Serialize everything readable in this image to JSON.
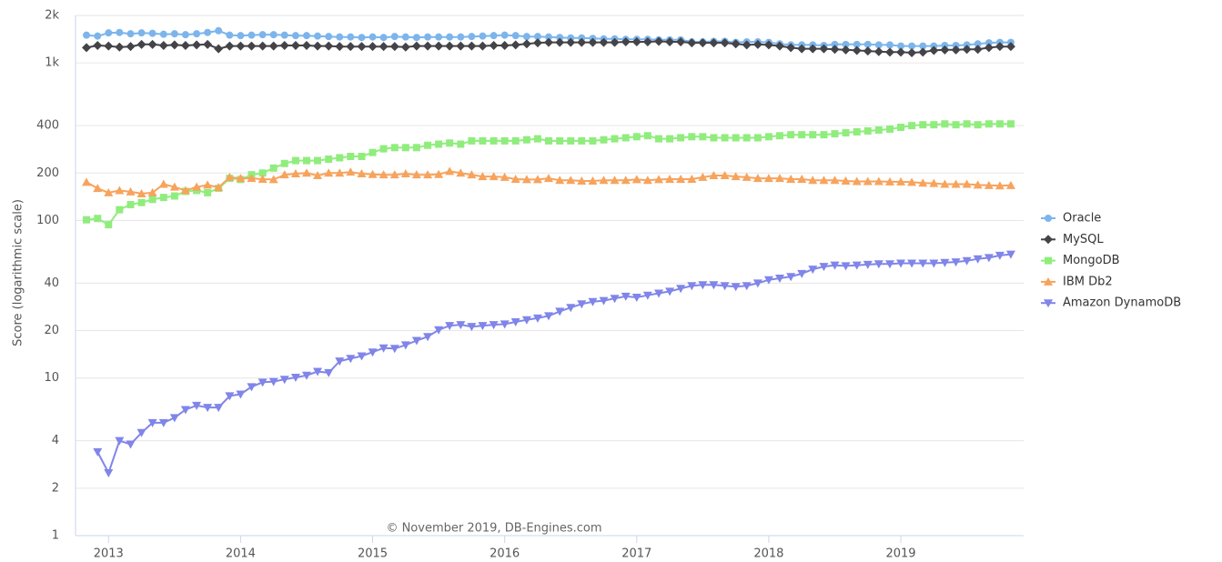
{
  "chart_data": {
    "type": "line",
    "log_scale": true,
    "grid": true,
    "legend": "right",
    "y_label": "Score (logarithmic scale)",
    "annotation": "© November 2019, DB-Engines.com",
    "xlim": [
      2012.75,
      2019.93
    ],
    "xticks": [
      2013,
      2014,
      2015,
      2016,
      2017,
      2018,
      2019
    ],
    "ylim": [
      1,
      2000
    ],
    "yticks": [
      {
        "value": 2000,
        "label": "2k"
      },
      {
        "value": 1000,
        "label": "1k"
      },
      400,
      200,
      100,
      40,
      20,
      10,
      4,
      2,
      1
    ],
    "x": [
      2012.833,
      2012.917,
      2013,
      2013.083,
      2013.167,
      2013.25,
      2013.333,
      2013.417,
      2013.5,
      2013.583,
      2013.667,
      2013.75,
      2013.833,
      2013.917,
      2014,
      2014.083,
      2014.167,
      2014.25,
      2014.333,
      2014.417,
      2014.5,
      2014.583,
      2014.667,
      2014.75,
      2014.833,
      2014.917,
      2015,
      2015.083,
      2015.167,
      2015.25,
      2015.333,
      2015.417,
      2015.5,
      2015.583,
      2015.667,
      2015.75,
      2015.833,
      2015.917,
      2016,
      2016.083,
      2016.167,
      2016.25,
      2016.333,
      2016.417,
      2016.5,
      2016.583,
      2016.667,
      2016.75,
      2016.833,
      2016.917,
      2017,
      2017.083,
      2017.167,
      2017.25,
      2017.333,
      2017.417,
      2017.5,
      2017.583,
      2017.667,
      2017.75,
      2017.833,
      2017.917,
      2018,
      2018.083,
      2018.167,
      2018.25,
      2018.333,
      2018.417,
      2018.5,
      2018.583,
      2018.667,
      2018.75,
      2018.833,
      2018.917,
      2019,
      2019.083,
      2019.167,
      2019.25,
      2019.333,
      2019.417,
      2019.5,
      2019.583,
      2019.667,
      2019.75,
      2019.833
    ],
    "series": [
      {
        "name": "Oracle",
        "color": "#7cb5ec",
        "marker": "circle",
        "values": [
          1500,
          1480,
          1550,
          1560,
          1530,
          1550,
          1540,
          1520,
          1530,
          1510,
          1530,
          1560,
          1600,
          1500,
          1490,
          1500,
          1510,
          1510,
          1500,
          1490,
          1490,
          1480,
          1470,
          1460,
          1460,
          1450,
          1460,
          1450,
          1470,
          1460,
          1450,
          1460,
          1460,
          1460,
          1460,
          1470,
          1480,
          1490,
          1500,
          1490,
          1470,
          1470,
          1460,
          1450,
          1440,
          1440,
          1430,
          1420,
          1420,
          1410,
          1410,
          1410,
          1400,
          1400,
          1400,
          1360,
          1360,
          1370,
          1370,
          1350,
          1360,
          1360,
          1350,
          1320,
          1300,
          1300,
          1300,
          1290,
          1310,
          1310,
          1310,
          1310,
          1300,
          1300,
          1280,
          1280,
          1280,
          1280,
          1290,
          1290,
          1300,
          1320,
          1340,
          1350,
          1350
        ]
      },
      {
        "name": "MySQL",
        "color": "#434348",
        "marker": "diamond",
        "values": [
          1250,
          1290,
          1280,
          1260,
          1270,
          1310,
          1310,
          1290,
          1300,
          1290,
          1300,
          1310,
          1230,
          1280,
          1280,
          1280,
          1280,
          1280,
          1290,
          1290,
          1290,
          1280,
          1280,
          1270,
          1270,
          1270,
          1270,
          1270,
          1270,
          1260,
          1280,
          1280,
          1280,
          1280,
          1280,
          1280,
          1280,
          1290,
          1290,
          1300,
          1320,
          1340,
          1350,
          1350,
          1350,
          1350,
          1350,
          1350,
          1350,
          1360,
          1360,
          1360,
          1370,
          1360,
          1360,
          1340,
          1340,
          1340,
          1340,
          1320,
          1300,
          1310,
          1300,
          1280,
          1250,
          1230,
          1230,
          1230,
          1220,
          1210,
          1200,
          1190,
          1180,
          1170,
          1170,
          1160,
          1170,
          1200,
          1210,
          1210,
          1220,
          1220,
          1250,
          1270,
          1270
        ]
      },
      {
        "name": "MongoDB",
        "color": "#90ed7d",
        "marker": "square",
        "values": [
          101,
          103,
          94,
          117,
          126,
          130,
          136,
          140,
          143,
          153,
          155,
          150,
          160,
          185,
          182,
          195,
          200,
          215,
          230,
          240,
          240,
          240,
          245,
          250,
          255,
          255,
          270,
          285,
          290,
          290,
          290,
          300,
          305,
          310,
          305,
          320,
          320,
          320,
          320,
          320,
          325,
          330,
          320,
          320,
          320,
          320,
          320,
          325,
          330,
          335,
          340,
          345,
          330,
          330,
          335,
          340,
          340,
          335,
          335,
          335,
          335,
          335,
          340,
          345,
          350,
          350,
          350,
          350,
          355,
          360,
          365,
          370,
          375,
          380,
          390,
          400,
          405,
          405,
          410,
          405,
          410,
          405,
          410,
          410,
          410
        ]
      },
      {
        "name": "IBM Db2",
        "color": "#f7a35c",
        "marker": "triangle",
        "values": [
          175,
          160,
          150,
          155,
          152,
          148,
          150,
          170,
          163,
          155,
          163,
          168,
          162,
          188,
          185,
          185,
          183,
          182,
          195,
          198,
          200,
          193,
          200,
          200,
          203,
          198,
          196,
          195,
          195,
          198,
          195,
          195,
          196,
          205,
          200,
          195,
          190,
          190,
          188,
          183,
          182,
          182,
          185,
          180,
          180,
          178,
          178,
          180,
          180,
          180,
          182,
          180,
          182,
          183,
          183,
          183,
          188,
          193,
          193,
          190,
          188,
          185,
          185,
          185,
          183,
          183,
          180,
          180,
          180,
          178,
          177,
          177,
          177,
          176,
          176,
          175,
          173,
          172,
          170,
          170,
          170,
          168,
          167,
          166,
          167
        ]
      },
      {
        "name": "Amazon DynamoDB",
        "color": "#8085e9",
        "marker": "triangle-down",
        "values": [
          null,
          3.4,
          2.5,
          4.0,
          3.8,
          4.5,
          5.2,
          5.2,
          5.6,
          6.3,
          6.7,
          6.5,
          6.5,
          7.7,
          7.9,
          8.8,
          9.4,
          9.5,
          9.8,
          10.1,
          10.4,
          11.0,
          10.8,
          12.8,
          13.3,
          13.8,
          14.6,
          15.5,
          15.4,
          16.2,
          17.3,
          18.3,
          20.2,
          21.5,
          21.8,
          21.2,
          21.5,
          21.8,
          22.0,
          22.7,
          23.4,
          24.0,
          24.8,
          26.5,
          28.0,
          29.5,
          30.5,
          31.0,
          32.0,
          33.0,
          32.5,
          33.5,
          34.5,
          35.5,
          37.0,
          38.5,
          39.0,
          39.0,
          38.5,
          38.0,
          38.5,
          40.0,
          42.0,
          43.0,
          44.0,
          46.0,
          49.0,
          51.0,
          52.0,
          51.5,
          52.0,
          52.5,
          53.0,
          53.0,
          53.5,
          53.5,
          53.5,
          53.5,
          54.0,
          54.5,
          55.5,
          57.0,
          58.0,
          60.0,
          61.0
        ]
      }
    ]
  }
}
